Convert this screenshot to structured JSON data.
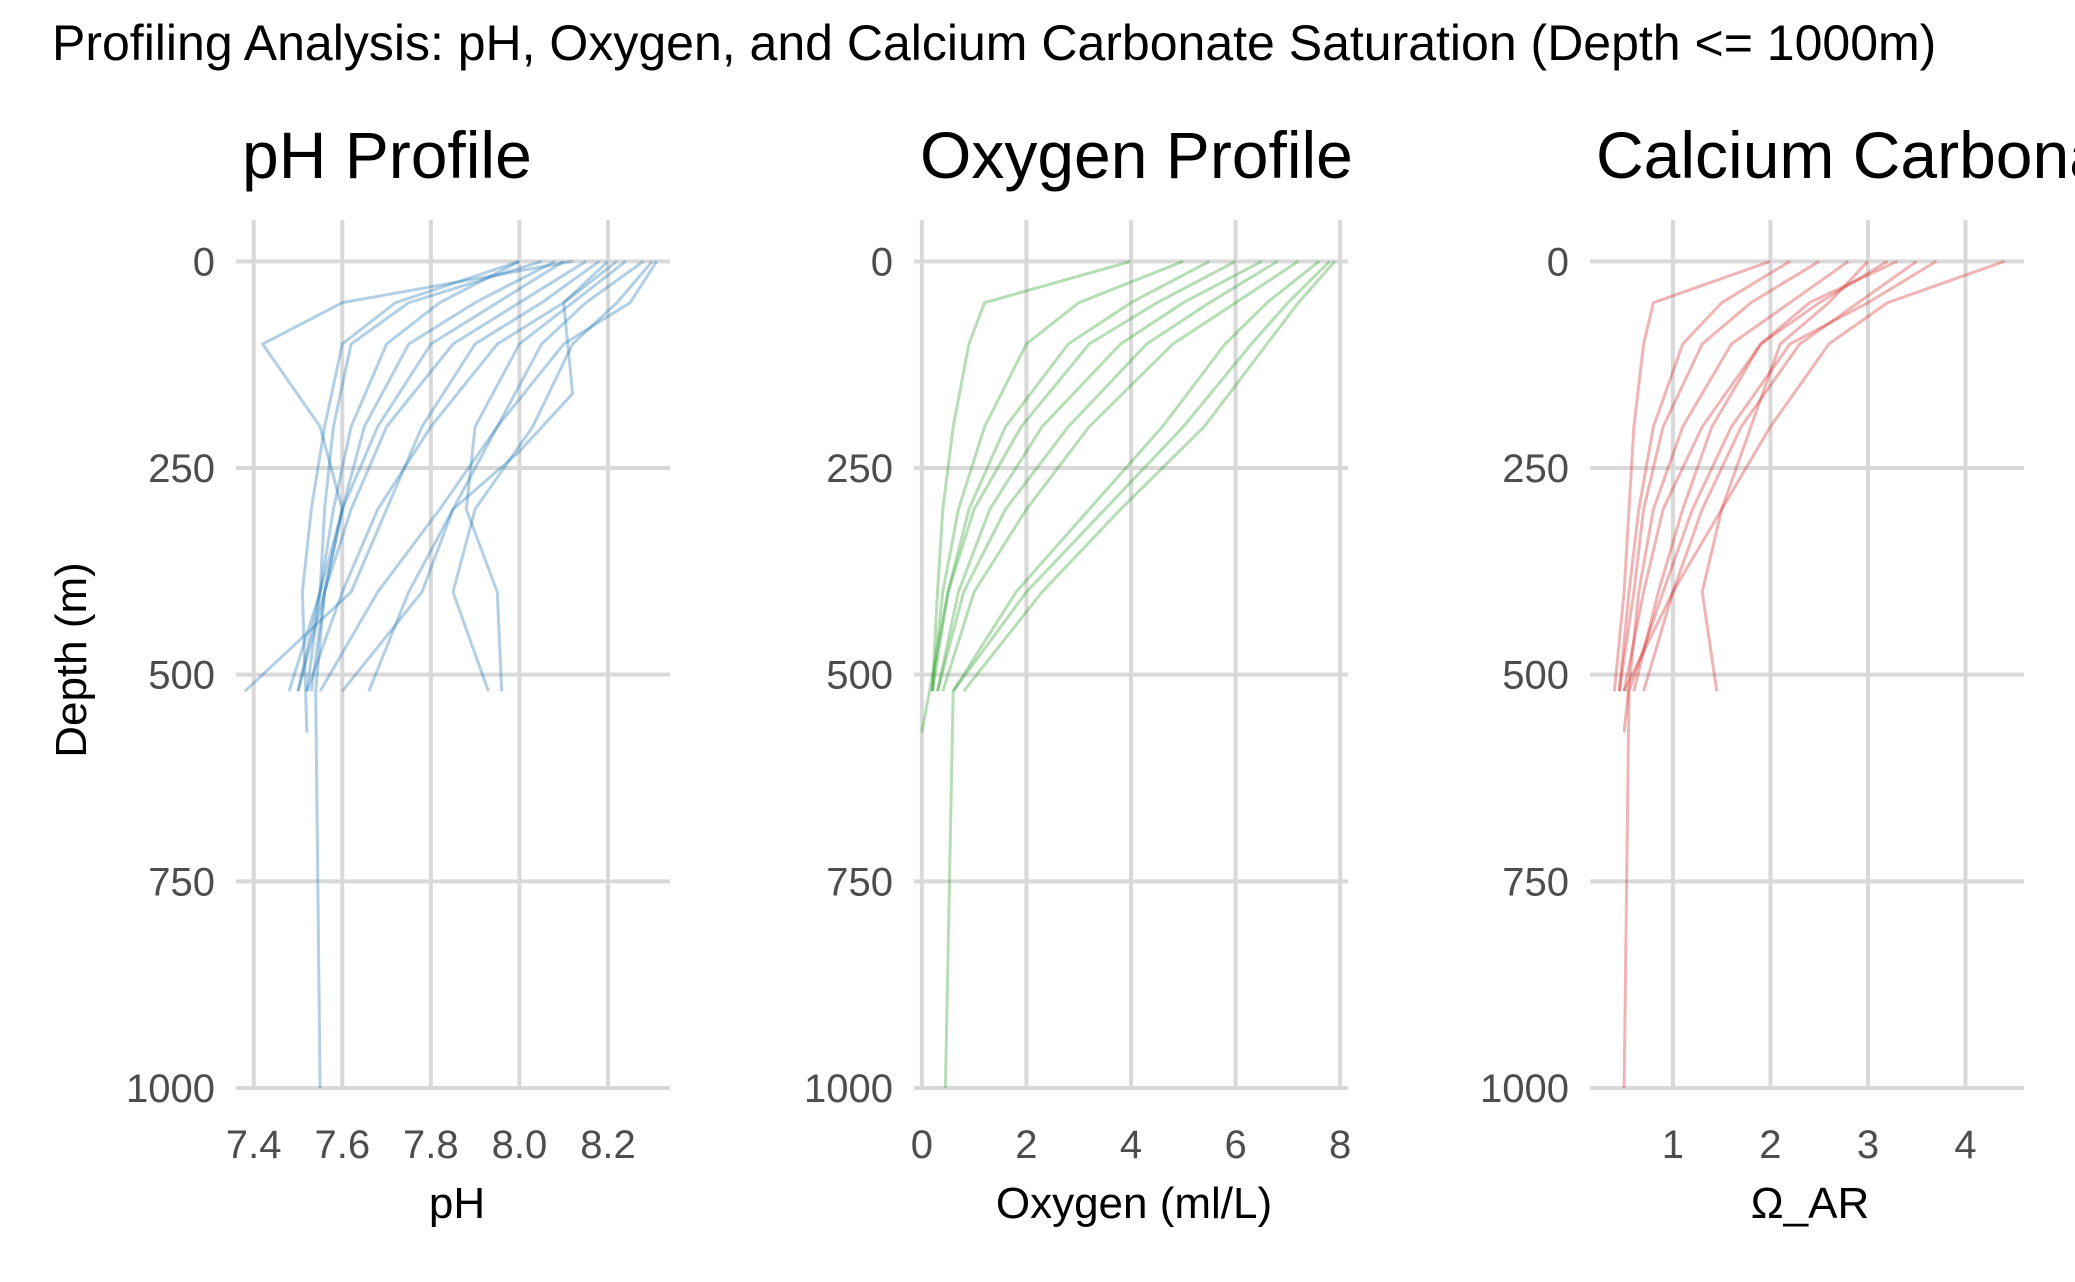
{
  "figure": {
    "title": "Profiling Analysis: pH, Oxygen, and Calcium Carbonate Saturation (Depth <= 1000m)"
  },
  "chart_data": [
    {
      "type": "line",
      "title": "pH Profile",
      "xlabel": "pH",
      "ylabel": "Depth (m)",
      "color": "#1f77b4",
      "xlim": [
        7.36,
        8.34
      ],
      "ylim": [
        1000,
        -50
      ],
      "y_reversed": true,
      "x_ticks": [
        "7.4",
        "7.6",
        "7.8",
        "8.0",
        "8.2"
      ],
      "y_ticks": [
        "0",
        "250",
        "500",
        "750",
        "1000"
      ],
      "grid": true,
      "series": [
        {
          "x": [
            8.31,
            8.25,
            8.1,
            7.95,
            7.82,
            7.68,
            7.55
          ],
          "y": [
            0,
            50,
            100,
            200,
            300,
            400,
            520
          ]
        },
        {
          "x": [
            8.2,
            8.1,
            7.95,
            7.8,
            7.68,
            7.6,
            7.52
          ],
          "y": [
            0,
            50,
            100,
            200,
            300,
            400,
            520
          ]
        },
        {
          "x": [
            8.1,
            7.95,
            7.8,
            7.68,
            7.6,
            7.55,
            7.5
          ],
          "y": [
            0,
            50,
            100,
            200,
            300,
            400,
            520
          ]
        },
        {
          "x": [
            8.05,
            7.75,
            7.62,
            7.58,
            7.56,
            7.55,
            7.48
          ],
          "y": [
            0,
            50,
            100,
            200,
            300,
            400,
            520
          ]
        },
        {
          "x": [
            8.15,
            8.0,
            7.85,
            7.7,
            7.62,
            7.56,
            7.53
          ],
          "y": [
            0,
            50,
            100,
            200,
            300,
            400,
            520
          ]
        },
        {
          "x": [
            8.28,
            8.15,
            8.05,
            7.95,
            7.85,
            7.78,
            7.6
          ],
          "y": [
            0,
            50,
            100,
            200,
            300,
            400,
            520
          ]
        },
        {
          "x": [
            8.0,
            7.82,
            7.7,
            7.62,
            7.58,
            7.55,
            7.52
          ],
          "y": [
            0,
            50,
            100,
            200,
            300,
            400,
            520
          ]
        },
        {
          "x": [
            8.12,
            7.6,
            7.42,
            7.55,
            7.6,
            7.56,
            7.5
          ],
          "y": [
            0,
            50,
            100,
            200,
            300,
            400,
            520
          ]
        },
        {
          "x": [
            8.24,
            8.12,
            8.0,
            7.9,
            7.88,
            7.95,
            7.96
          ],
          "y": [
            0,
            50,
            100,
            200,
            300,
            400,
            520
          ]
        },
        {
          "x": [
            8.3,
            8.22,
            8.12,
            8.03,
            7.9,
            7.85,
            7.93
          ],
          "y": [
            0,
            50,
            100,
            200,
            300,
            400,
            520
          ]
        },
        {
          "x": [
            8.18,
            8.05,
            7.9,
            7.78,
            7.7,
            7.62,
            7.38
          ],
          "y": [
            0,
            50,
            100,
            200,
            300,
            400,
            520
          ]
        },
        {
          "x": [
            8.08,
            7.9,
            7.75,
            7.65,
            7.6,
            7.56,
            7.54,
            7.55
          ],
          "y": [
            0,
            50,
            100,
            200,
            300,
            400,
            520,
            1000
          ]
        },
        {
          "x": [
            8.22,
            8.1,
            8.12,
            8.0,
            7.85,
            7.75,
            7.66
          ],
          "y": [
            0,
            50,
            160,
            230,
            300,
            400,
            520
          ]
        },
        {
          "x": [
            8.0,
            7.72,
            7.6,
            7.56,
            7.53,
            7.51,
            7.52
          ],
          "y": [
            0,
            50,
            100,
            200,
            300,
            400,
            570
          ]
        }
      ]
    },
    {
      "type": "line",
      "title": "Oxygen Profile",
      "xlabel": "Oxygen (ml/L)",
      "ylabel": "",
      "color": "#2ca02c",
      "xlim": [
        -0.15,
        8.15
      ],
      "ylim": [
        1000,
        -50
      ],
      "y_reversed": true,
      "x_ticks": [
        "0",
        "2",
        "4",
        "6",
        "8"
      ],
      "y_ticks": [
        "0",
        "250",
        "500",
        "750",
        "1000"
      ],
      "grid": true,
      "series": [
        {
          "x": [
            7.8,
            7.0,
            6.3,
            5.0,
            3.5,
            2.0,
            0.6
          ],
          "y": [
            0,
            50,
            100,
            200,
            300,
            400,
            520
          ]
        },
        {
          "x": [
            6.5,
            5.0,
            3.8,
            2.3,
            1.3,
            0.7,
            0.3
          ],
          "y": [
            0,
            50,
            100,
            200,
            300,
            400,
            520
          ]
        },
        {
          "x": [
            5.5,
            4.0,
            2.8,
            1.6,
            0.9,
            0.5,
            0.2
          ],
          "y": [
            0,
            50,
            100,
            200,
            300,
            400,
            520
          ]
        },
        {
          "x": [
            4.0,
            1.2,
            0.9,
            0.6,
            0.4,
            0.3,
            0.2
          ],
          "y": [
            0,
            50,
            100,
            200,
            300,
            400,
            520
          ]
        },
        {
          "x": [
            7.2,
            6.0,
            4.8,
            3.2,
            2.0,
            1.0,
            0.4
          ],
          "y": [
            0,
            50,
            100,
            200,
            300,
            400,
            520
          ]
        },
        {
          "x": [
            7.6,
            6.6,
            5.8,
            4.6,
            3.2,
            1.8,
            0.6,
            0.45
          ],
          "y": [
            0,
            50,
            100,
            200,
            300,
            400,
            520,
            1000
          ]
        },
        {
          "x": [
            6.0,
            4.5,
            3.2,
            1.9,
            1.0,
            0.5,
            0.0
          ],
          "y": [
            0,
            50,
            100,
            200,
            300,
            400,
            570
          ]
        },
        {
          "x": [
            7.9,
            7.2,
            6.6,
            5.4,
            3.8,
            2.3,
            0.8
          ],
          "y": [
            0,
            50,
            100,
            200,
            300,
            400,
            520
          ]
        },
        {
          "x": [
            5.0,
            3.0,
            2.0,
            1.2,
            0.7,
            0.4,
            0.2
          ],
          "y": [
            0,
            50,
            100,
            200,
            300,
            400,
            520
          ]
        },
        {
          "x": [
            6.8,
            5.5,
            4.3,
            2.8,
            1.6,
            0.8,
            0.3
          ],
          "y": [
            0,
            50,
            100,
            200,
            300,
            400,
            520
          ]
        }
      ]
    },
    {
      "type": "line",
      "title": "Calcium Carbonate Saturation",
      "xlabel": "Ω_AR",
      "ylabel": "",
      "color": "#d62728",
      "xlim": [
        0.15,
        4.6
      ],
      "ylim": [
        1000,
        -50
      ],
      "y_reversed": true,
      "x_ticks": [
        "1",
        "2",
        "3",
        "4"
      ],
      "y_ticks": [
        "0",
        "250",
        "500",
        "750",
        "1000"
      ],
      "grid": true,
      "series": [
        {
          "x": [
            4.4,
            3.2,
            2.6,
            2.0,
            1.5,
            1.0,
            0.5
          ],
          "y": [
            0,
            50,
            100,
            200,
            300,
            400,
            520
          ]
        },
        {
          "x": [
            3.3,
            2.4,
            1.9,
            1.3,
            0.9,
            0.7,
            0.5
          ],
          "y": [
            0,
            50,
            100,
            200,
            300,
            400,
            520
          ]
        },
        {
          "x": [
            2.5,
            1.8,
            1.3,
            0.9,
            0.7,
            0.6,
            0.45
          ],
          "y": [
            0,
            50,
            100,
            200,
            300,
            400,
            520
          ]
        },
        {
          "x": [
            2.0,
            0.8,
            0.7,
            0.6,
            0.55,
            0.5,
            0.4
          ],
          "y": [
            0,
            50,
            100,
            200,
            300,
            400,
            520
          ]
        },
        {
          "x": [
            3.7,
            3.0,
            2.2,
            1.6,
            1.2,
            0.9,
            0.55,
            0.5
          ],
          "y": [
            0,
            50,
            100,
            200,
            300,
            400,
            520,
            1000
          ]
        },
        {
          "x": [
            3.0,
            2.6,
            2.1,
            1.8,
            1.5,
            1.3,
            1.45
          ],
          "y": [
            0,
            50,
            100,
            200,
            300,
            400,
            520
          ]
        },
        {
          "x": [
            2.8,
            2.2,
            1.6,
            1.1,
            0.8,
            0.65,
            0.5
          ],
          "y": [
            0,
            50,
            100,
            200,
            300,
            400,
            570
          ]
        },
        {
          "x": [
            3.5,
            2.9,
            2.3,
            1.7,
            1.3,
            1.0,
            0.7
          ],
          "y": [
            0,
            50,
            100,
            200,
            300,
            400,
            520
          ]
        },
        {
          "x": [
            2.2,
            1.5,
            1.1,
            0.8,
            0.65,
            0.55,
            0.45
          ],
          "y": [
            0,
            50,
            100,
            200,
            300,
            400,
            520
          ]
        },
        {
          "x": [
            3.2,
            2.5,
            1.9,
            1.4,
            1.1,
            0.85,
            0.6
          ],
          "y": [
            0,
            50,
            100,
            200,
            300,
            400,
            520
          ]
        }
      ]
    }
  ]
}
